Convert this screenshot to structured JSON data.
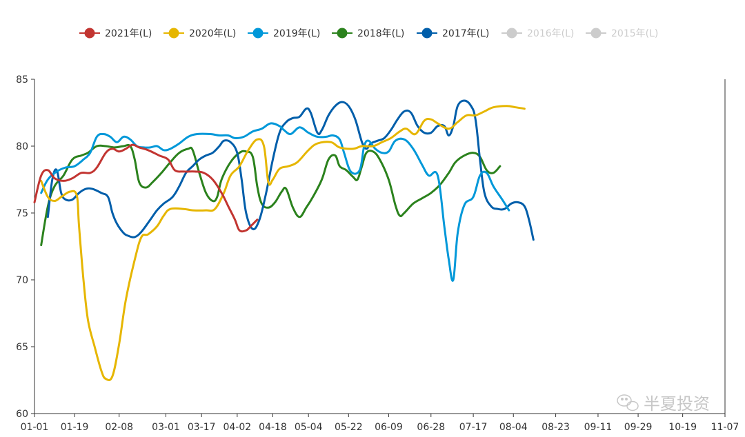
{
  "chart_data": {
    "type": "line",
    "legend_position": "top-center",
    "grid": false,
    "ylim": [
      60,
      85
    ],
    "y_ticks": [
      60,
      65,
      70,
      75,
      80,
      85
    ],
    "x_domain": [
      0,
      310
    ],
    "x_ticks": [
      {
        "label": "01-01",
        "x": 0
      },
      {
        "label": "01-19",
        "x": 18
      },
      {
        "label": "02-08",
        "x": 38
      },
      {
        "label": "03-01",
        "x": 59
      },
      {
        "label": "03-17",
        "x": 75
      },
      {
        "label": "04-02",
        "x": 91
      },
      {
        "label": "04-18",
        "x": 107
      },
      {
        "label": "05-04",
        "x": 123
      },
      {
        "label": "05-22",
        "x": 141
      },
      {
        "label": "06-09",
        "x": 159
      },
      {
        "label": "06-28",
        "x": 178
      },
      {
        "label": "07-17",
        "x": 197
      },
      {
        "label": "08-04",
        "x": 215
      },
      {
        "label": "08-23",
        "x": 234
      },
      {
        "label": "09-11",
        "x": 253
      },
      {
        "label": "09-29",
        "x": 271
      },
      {
        "label": "10-19",
        "x": 291
      },
      {
        "label": "11-07",
        "x": 310
      }
    ],
    "series": [
      {
        "name": "2021年(L)",
        "color": "#c23531",
        "active": true,
        "points": [
          [
            0,
            75.8
          ],
          [
            3,
            77.8
          ],
          [
            6,
            78.2
          ],
          [
            9,
            77.6
          ],
          [
            13,
            77.4
          ],
          [
            17,
            77.6
          ],
          [
            21,
            78.0
          ],
          [
            25,
            78.0
          ],
          [
            28,
            78.4
          ],
          [
            32,
            79.5
          ],
          [
            35,
            79.8
          ],
          [
            38,
            79.6
          ],
          [
            41,
            79.8
          ],
          [
            44,
            80.1
          ],
          [
            47,
            79.9
          ],
          [
            51,
            79.7
          ],
          [
            56,
            79.3
          ],
          [
            60,
            79.0
          ],
          [
            63,
            78.2
          ],
          [
            67,
            78.1
          ],
          [
            72,
            78.1
          ],
          [
            76,
            78.0
          ],
          [
            80,
            77.5
          ],
          [
            84,
            76.5
          ],
          [
            87,
            75.5
          ],
          [
            90,
            74.5
          ],
          [
            92,
            73.7
          ],
          [
            95,
            73.7
          ],
          [
            97,
            74.0
          ],
          [
            100,
            74.5
          ]
        ]
      },
      {
        "name": "2020年(L)",
        "color": "#e6b600",
        "active": true,
        "points": [
          [
            3,
            77.4
          ],
          [
            6,
            76.2
          ],
          [
            9,
            75.9
          ],
          [
            12,
            76.2
          ],
          [
            16,
            76.6
          ],
          [
            19,
            76.3
          ],
          [
            20,
            74.0
          ],
          [
            22,
            70.0
          ],
          [
            24,
            67.0
          ],
          [
            27,
            65.0
          ],
          [
            30,
            63.2
          ],
          [
            32,
            62.6
          ],
          [
            35,
            62.8
          ],
          [
            38,
            65.2
          ],
          [
            41,
            68.5
          ],
          [
            45,
            71.5
          ],
          [
            48,
            73.2
          ],
          [
            51,
            73.4
          ],
          [
            55,
            74.0
          ],
          [
            58,
            74.8
          ],
          [
            61,
            75.3
          ],
          [
            67,
            75.3
          ],
          [
            71,
            75.2
          ],
          [
            77,
            75.2
          ],
          [
            81,
            75.3
          ],
          [
            85,
            76.5
          ],
          [
            88,
            77.8
          ],
          [
            92,
            78.5
          ],
          [
            96,
            79.7
          ],
          [
            100,
            80.5
          ],
          [
            103,
            80.0
          ],
          [
            105,
            77.3
          ],
          [
            107,
            77.5
          ],
          [
            110,
            78.3
          ],
          [
            114,
            78.5
          ],
          [
            118,
            78.8
          ],
          [
            123,
            79.7
          ],
          [
            127,
            80.2
          ],
          [
            133,
            80.3
          ],
          [
            137,
            79.9
          ],
          [
            143,
            79.8
          ],
          [
            147,
            80.0
          ],
          [
            152,
            80.0
          ],
          [
            156,
            80.3
          ],
          [
            160,
            80.6
          ],
          [
            164,
            81.1
          ],
          [
            167,
            81.3
          ],
          [
            171,
            80.9
          ],
          [
            175,
            81.9
          ],
          [
            178,
            82.0
          ],
          [
            181,
            81.7
          ],
          [
            186,
            81.3
          ],
          [
            190,
            81.8
          ],
          [
            194,
            82.3
          ],
          [
            198,
            82.3
          ],
          [
            202,
            82.6
          ],
          [
            206,
            82.9
          ],
          [
            212,
            83.0
          ],
          [
            216,
            82.9
          ],
          [
            220,
            82.8
          ]
        ]
      },
      {
        "name": "2019年(L)",
        "color": "#0098d9",
        "active": true,
        "points": [
          [
            3,
            76.5
          ],
          [
            6,
            77.5
          ],
          [
            10,
            78.1
          ],
          [
            14,
            78.4
          ],
          [
            18,
            78.5
          ],
          [
            22,
            79.0
          ],
          [
            25,
            79.5
          ],
          [
            28,
            80.7
          ],
          [
            31,
            80.9
          ],
          [
            34,
            80.7
          ],
          [
            37,
            80.3
          ],
          [
            40,
            80.7
          ],
          [
            43,
            80.5
          ],
          [
            46,
            80.0
          ],
          [
            49,
            79.9
          ],
          [
            52,
            79.9
          ],
          [
            55,
            80.0
          ],
          [
            58,
            79.7
          ],
          [
            61,
            79.8
          ],
          [
            65,
            80.2
          ],
          [
            69,
            80.7
          ],
          [
            73,
            80.9
          ],
          [
            79,
            80.9
          ],
          [
            83,
            80.8
          ],
          [
            87,
            80.8
          ],
          [
            90,
            80.6
          ],
          [
            94,
            80.7
          ],
          [
            98,
            81.1
          ],
          [
            102,
            81.3
          ],
          [
            106,
            81.7
          ],
          [
            110,
            81.5
          ],
          [
            112,
            81.2
          ],
          [
            115,
            80.9
          ],
          [
            119,
            81.4
          ],
          [
            123,
            81.0
          ],
          [
            127,
            80.7
          ],
          [
            131,
            80.7
          ],
          [
            134,
            80.8
          ],
          [
            137,
            80.5
          ],
          [
            139,
            79.5
          ],
          [
            142,
            78.1
          ],
          [
            146,
            78.2
          ],
          [
            148,
            80.0
          ],
          [
            150,
            80.4
          ],
          [
            153,
            79.8
          ],
          [
            156,
            79.5
          ],
          [
            159,
            79.6
          ],
          [
            162,
            80.4
          ],
          [
            166,
            80.5
          ],
          [
            170,
            79.8
          ],
          [
            174,
            78.6
          ],
          [
            177,
            77.8
          ],
          [
            181,
            77.8
          ],
          [
            184,
            74.0
          ],
          [
            186,
            71.5
          ],
          [
            188,
            70.0
          ],
          [
            190,
            73.5
          ],
          [
            193,
            75.6
          ],
          [
            197,
            76.2
          ],
          [
            200,
            77.8
          ],
          [
            203,
            78.0
          ],
          [
            206,
            77.0
          ],
          [
            210,
            76.0
          ],
          [
            213,
            75.2
          ]
        ]
      },
      {
        "name": "2018年(L)",
        "color": "#2b821d",
        "active": true,
        "points": [
          [
            3,
            72.6
          ],
          [
            6,
            75.5
          ],
          [
            9,
            77.0
          ],
          [
            13,
            77.8
          ],
          [
            17,
            79.0
          ],
          [
            21,
            79.3
          ],
          [
            24,
            79.5
          ],
          [
            28,
            80.0
          ],
          [
            32,
            80.0
          ],
          [
            36,
            79.9
          ],
          [
            40,
            80.0
          ],
          [
            43,
            80.0
          ],
          [
            45,
            79.0
          ],
          [
            47,
            77.3
          ],
          [
            50,
            76.9
          ],
          [
            53,
            77.3
          ],
          [
            57,
            78.0
          ],
          [
            61,
            78.8
          ],
          [
            65,
            79.5
          ],
          [
            69,
            79.8
          ],
          [
            71,
            79.7
          ],
          [
            74,
            78.0
          ],
          [
            77,
            76.5
          ],
          [
            80,
            75.9
          ],
          [
            82,
            76.2
          ],
          [
            84,
            77.5
          ],
          [
            88,
            78.8
          ],
          [
            92,
            79.5
          ],
          [
            95,
            79.6
          ],
          [
            98,
            79.2
          ],
          [
            100,
            77.0
          ],
          [
            102,
            75.7
          ],
          [
            105,
            75.4
          ],
          [
            108,
            75.8
          ],
          [
            111,
            76.6
          ],
          [
            113,
            76.8
          ],
          [
            116,
            75.4
          ],
          [
            119,
            74.7
          ],
          [
            122,
            75.4
          ],
          [
            125,
            76.2
          ],
          [
            129,
            77.5
          ],
          [
            132,
            79.0
          ],
          [
            135,
            79.3
          ],
          [
            137,
            78.5
          ],
          [
            140,
            78.2
          ],
          [
            143,
            77.7
          ],
          [
            145,
            77.5
          ],
          [
            147,
            78.5
          ],
          [
            149,
            79.5
          ],
          [
            152,
            79.6
          ],
          [
            155,
            79.0
          ],
          [
            159,
            77.5
          ],
          [
            162,
            75.6
          ],
          [
            164,
            74.8
          ],
          [
            166,
            75.0
          ],
          [
            170,
            75.7
          ],
          [
            174,
            76.1
          ],
          [
            178,
            76.5
          ],
          [
            182,
            77.1
          ],
          [
            186,
            78.0
          ],
          [
            189,
            78.8
          ],
          [
            193,
            79.3
          ],
          [
            197,
            79.5
          ],
          [
            200,
            79.2
          ],
          [
            203,
            78.2
          ],
          [
            206,
            78.0
          ],
          [
            209,
            78.5
          ]
        ]
      },
      {
        "name": "2017年(L)",
        "color": "#005eaa",
        "active": true,
        "points": [
          [
            6,
            74.7
          ],
          [
            8,
            77.5
          ],
          [
            10,
            78.2
          ],
          [
            12,
            76.5
          ],
          [
            14,
            76.0
          ],
          [
            17,
            76.0
          ],
          [
            20,
            76.5
          ],
          [
            23,
            76.8
          ],
          [
            26,
            76.8
          ],
          [
            30,
            76.5
          ],
          [
            33,
            76.2
          ],
          [
            35,
            75.0
          ],
          [
            37,
            74.2
          ],
          [
            40,
            73.5
          ],
          [
            42,
            73.3
          ],
          [
            45,
            73.2
          ],
          [
            48,
            73.6
          ],
          [
            52,
            74.5
          ],
          [
            55,
            75.2
          ],
          [
            58,
            75.7
          ],
          [
            62,
            76.2
          ],
          [
            65,
            77.0
          ],
          [
            68,
            78.0
          ],
          [
            71,
            78.5
          ],
          [
            74,
            79.0
          ],
          [
            77,
            79.3
          ],
          [
            80,
            79.5
          ],
          [
            83,
            80.0
          ],
          [
            85,
            80.4
          ],
          [
            88,
            80.3
          ],
          [
            91,
            79.5
          ],
          [
            93,
            77.5
          ],
          [
            95,
            75.0
          ],
          [
            98,
            73.8
          ],
          [
            101,
            74.5
          ],
          [
            104,
            76.5
          ],
          [
            107,
            79.0
          ],
          [
            110,
            81.0
          ],
          [
            113,
            81.8
          ],
          [
            116,
            82.1
          ],
          [
            119,
            82.2
          ],
          [
            122,
            82.8
          ],
          [
            124,
            82.5
          ],
          [
            127,
            81.0
          ],
          [
            129,
            81.2
          ],
          [
            132,
            82.3
          ],
          [
            135,
            83.0
          ],
          [
            138,
            83.3
          ],
          [
            141,
            83.0
          ],
          [
            144,
            82.0
          ],
          [
            147,
            80.3
          ],
          [
            149,
            79.8
          ],
          [
            151,
            80.2
          ],
          [
            154,
            80.4
          ],
          [
            157,
            80.6
          ],
          [
            160,
            81.2
          ],
          [
            163,
            82.0
          ],
          [
            166,
            82.6
          ],
          [
            169,
            82.5
          ],
          [
            172,
            81.5
          ],
          [
            175,
            81.0
          ],
          [
            178,
            81.0
          ],
          [
            181,
            81.5
          ],
          [
            184,
            81.5
          ],
          [
            186,
            80.8
          ],
          [
            188,
            81.5
          ],
          [
            190,
            83.0
          ],
          [
            193,
            83.4
          ],
          [
            196,
            83.0
          ],
          [
            198,
            82.0
          ],
          [
            200,
            79.0
          ],
          [
            202,
            76.5
          ],
          [
            205,
            75.5
          ],
          [
            208,
            75.3
          ],
          [
            211,
            75.3
          ],
          [
            214,
            75.7
          ],
          [
            217,
            75.8
          ],
          [
            220,
            75.5
          ],
          [
            222,
            74.5
          ],
          [
            224,
            73.0
          ]
        ]
      },
      {
        "name": "2016年(L)",
        "color": "#cccccc",
        "active": false,
        "points": []
      },
      {
        "name": "2015年(L)",
        "color": "#cccccc",
        "active": false,
        "points": []
      }
    ],
    "watermark": "半夏投资"
  }
}
